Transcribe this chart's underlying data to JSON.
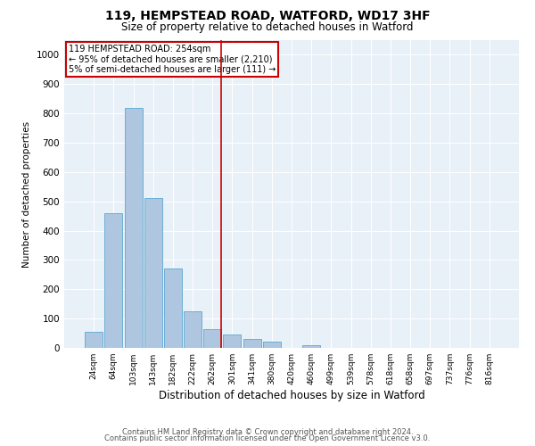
{
  "title1": "119, HEMPSTEAD ROAD, WATFORD, WD17 3HF",
  "title2": "Size of property relative to detached houses in Watford",
  "xlabel": "Distribution of detached houses by size in Watford",
  "ylabel": "Number of detached properties",
  "categories": [
    "24sqm",
    "64sqm",
    "103sqm",
    "143sqm",
    "182sqm",
    "222sqm",
    "262sqm",
    "301sqm",
    "341sqm",
    "380sqm",
    "420sqm",
    "460sqm",
    "499sqm",
    "539sqm",
    "578sqm",
    "618sqm",
    "658sqm",
    "697sqm",
    "737sqm",
    "776sqm",
    "816sqm"
  ],
  "values": [
    55,
    460,
    820,
    510,
    270,
    125,
    65,
    45,
    30,
    20,
    0,
    10,
    0,
    0,
    0,
    0,
    0,
    0,
    0,
    0,
    0
  ],
  "bar_color": "#aec6e0",
  "bar_edge_color": "#6baed6",
  "ref_line_x": 6.45,
  "ref_line_label": "119 HEMPSTEAD ROAD: 254sqm",
  "annotation_line2": "← 95% of detached houses are smaller (2,210)",
  "annotation_line3": "5% of semi-detached houses are larger (111) →",
  "annotation_box_color": "#cc0000",
  "ylim": [
    0,
    1050
  ],
  "yticks": [
    0,
    100,
    200,
    300,
    400,
    500,
    600,
    700,
    800,
    900,
    1000
  ],
  "background_color": "#e8f0f8",
  "grid_color": "#ffffff",
  "footer1": "Contains HM Land Registry data © Crown copyright and database right 2024.",
  "footer2": "Contains public sector information licensed under the Open Government Licence v3.0."
}
